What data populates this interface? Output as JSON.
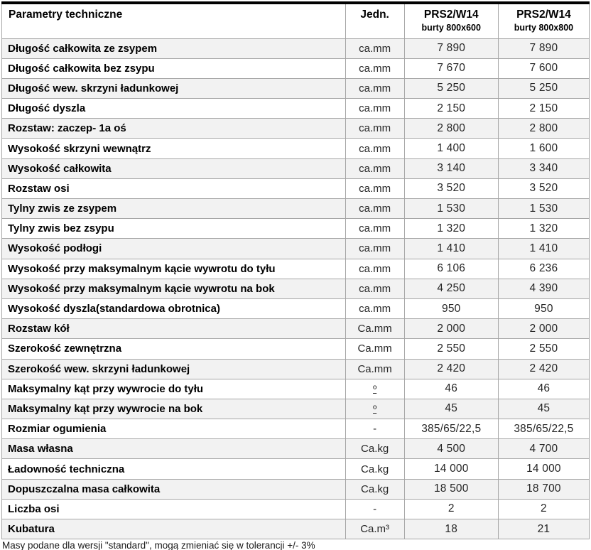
{
  "colors": {
    "table_border": "#a6a6a6",
    "table_top_border": "#000000",
    "row_stripe": "#f2f2f2",
    "row_plain": "#ffffff",
    "text": "#000000"
  },
  "table": {
    "header": {
      "param_label": "Parametry techniczne",
      "unit_label": "Jedn.",
      "col3_title": "PRS2/W14",
      "col3_sub": "burty 800x600",
      "col4_title": "PRS2/W14",
      "col4_sub": "burty 800x800"
    },
    "rows": [
      {
        "param": "Długość całkowita ze zsypem",
        "unit": "ca.mm",
        "v1": "7 890",
        "v2": "7 890"
      },
      {
        "param": "Długość całkowita bez zsypu",
        "unit": "ca.mm",
        "v1": "7 670",
        "v2": "7 600"
      },
      {
        "param": "Długość wew. skrzyni ładunkowej",
        "unit": "ca.mm",
        "v1": "5 250",
        "v2": "5 250"
      },
      {
        "param": "Długość dyszla",
        "unit": "ca.mm",
        "v1": "2 150",
        "v2": "2 150"
      },
      {
        "param": "Rozstaw: zaczep- 1a oś",
        "unit": "ca.mm",
        "v1": "2 800",
        "v2": "2 800"
      },
      {
        "param": "Wysokość skrzyni wewnątrz",
        "unit": "ca.mm",
        "v1": "1 400",
        "v2": "1 600"
      },
      {
        "param": "Wysokość całkowita",
        "unit": "ca.mm",
        "v1": "3 140",
        "v2": "3 340"
      },
      {
        "param": "Rozstaw osi",
        "unit": "ca.mm",
        "v1": "3 520",
        "v2": "3 520"
      },
      {
        "param": "Tylny zwis ze zsypem",
        "unit": "ca.mm",
        "v1": "1 530",
        "v2": "1 530"
      },
      {
        "param": "Tylny zwis bez zsypu",
        "unit": "ca.mm",
        "v1": "1 320",
        "v2": "1 320"
      },
      {
        "param": "Wysokość podłogi",
        "unit": "ca.mm",
        "v1": "1 410",
        "v2": "1 410"
      },
      {
        "param": "Wysokość przy maksymalnym kącie wywrotu do tyłu",
        "unit": "ca.mm",
        "v1": "6 106",
        "v2": "6 236"
      },
      {
        "param": "Wysokość przy maksymalnym kącie wywrotu na bok",
        "unit": "ca.mm",
        "v1": "4 250",
        "v2": "4 390"
      },
      {
        "param": "Wysokość dyszla(standardowa obrotnica)",
        "unit": "ca.mm",
        "v1": "950",
        "v2": "950"
      },
      {
        "param": "Rozstaw kół",
        "unit": "Ca.mm",
        "v1": "2 000",
        "v2": "2 000"
      },
      {
        "param": "Szerokość zewnętrzna",
        "unit": "Ca.mm",
        "v1": "2 550",
        "v2": "2 550"
      },
      {
        "param": "Szerokość wew. skrzyni ładunkowej",
        "unit": "Ca.mm",
        "v1": "2 420",
        "v2": "2 420"
      },
      {
        "param": "Maksymalny kąt przy wywrocie do tyłu",
        "unit": "º",
        "v1": "46",
        "v2": "46"
      },
      {
        "param": "Maksymalny kąt przy wywrocie na bok",
        "unit": "º",
        "v1": "45",
        "v2": "45"
      },
      {
        "param": "Rozmiar ogumienia",
        "unit": "-",
        "v1": "385/65/22,5",
        "v2": "385/65/22,5"
      },
      {
        "param": "Masa własna",
        "unit": "Ca.kg",
        "v1": "4 500",
        "v2": "4 700"
      },
      {
        "param": "Ładowność techniczna",
        "unit": "Ca.kg",
        "v1": "14 000",
        "v2": "14 000"
      },
      {
        "param": "Dopuszczalna masa całkowita",
        "unit": "Ca.kg",
        "v1": "18 500",
        "v2": "18 700"
      },
      {
        "param": "Liczba osi",
        "unit": "-",
        "v1": "2",
        "v2": "2"
      },
      {
        "param": "Kubatura",
        "unit": "Ca.m³",
        "v1": "18",
        "v2": "21"
      }
    ],
    "footnote": "Masy podane dla wersji \"standard\", mogą zmieniać się w tolerancji +/- 3%"
  }
}
